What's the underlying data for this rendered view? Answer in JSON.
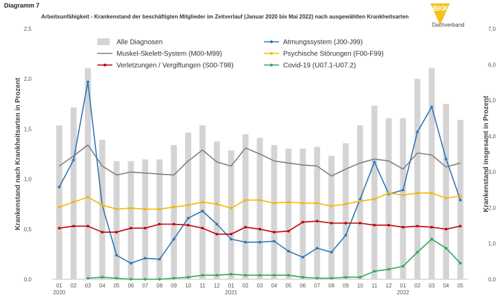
{
  "header": {
    "diagram_label": "Diagramm 7",
    "title": "Arbeitsunfähigkeit - Krankenstand der beschäftigten Mitglieder im Zeitverlauf (Januar 2020 bis Mai 2022) nach ausgewählten Krankheitsarten"
  },
  "logo": {
    "mark_text": "BKK",
    "text": "Dachverband"
  },
  "colors": {
    "bars": "#d4d4d4",
    "muskel": "#7f7f7f",
    "atmung": "#2e75b6",
    "psyche": "#f2b800",
    "verletzung": "#c00000",
    "covid": "#2ea55a"
  },
  "chart_data": {
    "type": "bar+line",
    "title": "Arbeitsunfähigkeit - Krankenstand der beschäftigten Mitglieder im Zeitverlauf (Januar 2020 bis Mai 2022) nach ausgewählten Krankheitsarten",
    "ylabel_left": "Krankenstand nach Krankheitsarten in Prozent",
    "ylabel_right": "Krankenstand insgesamt in Prozent",
    "ylim_left": [
      0,
      2.5
    ],
    "ylim_right": [
      0,
      7.0
    ],
    "yticks_left": [
      "0,0",
      "0,5",
      "1,0",
      "1,5",
      "2,0",
      "2,5"
    ],
    "yticks_right": [
      "0,0",
      "1,0",
      "2,0",
      "3,0",
      "4,0",
      "5,0",
      "6,0",
      "7,0"
    ],
    "categories": [
      "01",
      "02",
      "03",
      "04",
      "05",
      "06",
      "07",
      "08",
      "09",
      "10",
      "11",
      "12",
      "01",
      "02",
      "03",
      "04",
      "05",
      "06",
      "07",
      "08",
      "09",
      "10",
      "11",
      "12",
      "01",
      "02",
      "03",
      "04",
      "05"
    ],
    "year_labels": [
      {
        "index": 0,
        "label": "2020"
      },
      {
        "index": 12,
        "label": "2021"
      },
      {
        "index": 24,
        "label": "2022"
      }
    ],
    "legend_placement": "top",
    "grid": false,
    "bars": {
      "name": "Alle Diagnosen",
      "axis": "right",
      "values": [
        4.3,
        4.8,
        5.9,
        3.9,
        3.3,
        3.3,
        3.35,
        3.35,
        3.75,
        4.1,
        4.3,
        3.85,
        3.6,
        4.05,
        3.95,
        3.75,
        3.65,
        3.65,
        3.7,
        3.45,
        3.8,
        4.3,
        4.85,
        4.5,
        4.5,
        5.6,
        5.9,
        4.9,
        4.45
      ]
    },
    "series": [
      {
        "name": "Muskel-Skelett-System (M00-M99)",
        "key": "muskel",
        "axis": "left",
        "values": [
          1.13,
          1.23,
          1.34,
          1.13,
          1.04,
          1.07,
          1.06,
          1.05,
          1.04,
          1.18,
          1.29,
          1.17,
          1.13,
          1.31,
          1.25,
          1.18,
          1.16,
          1.14,
          1.13,
          1.03,
          1.1,
          1.16,
          1.2,
          1.18,
          1.1,
          1.26,
          1.24,
          1.12,
          1.16
        ]
      },
      {
        "name": "Atmungssystem (J00-J99)",
        "key": "atmung",
        "axis": "left",
        "values": [
          0.92,
          1.19,
          1.97,
          0.74,
          0.24,
          0.16,
          0.21,
          0.2,
          0.4,
          0.61,
          0.68,
          0.55,
          0.4,
          0.37,
          0.37,
          0.38,
          0.28,
          0.22,
          0.31,
          0.27,
          0.44,
          0.8,
          1.17,
          0.85,
          0.89,
          1.47,
          1.72,
          1.2,
          0.79
        ]
      },
      {
        "name": "Psychische Störungen (F00-F99)",
        "key": "psyche",
        "axis": "left",
        "values": [
          0.72,
          0.77,
          0.82,
          0.74,
          0.7,
          0.71,
          0.7,
          0.7,
          0.72,
          0.74,
          0.77,
          0.75,
          0.71,
          0.79,
          0.79,
          0.76,
          0.77,
          0.76,
          0.76,
          0.73,
          0.75,
          0.78,
          0.8,
          0.86,
          0.84,
          0.86,
          0.86,
          0.81,
          0.83
        ]
      },
      {
        "name": "Verletzungen / Vergiftungen (S00-T98)",
        "key": "verletzung",
        "axis": "left",
        "values": [
          0.51,
          0.53,
          0.53,
          0.47,
          0.47,
          0.51,
          0.51,
          0.55,
          0.55,
          0.54,
          0.51,
          0.45,
          0.45,
          0.52,
          0.5,
          0.47,
          0.48,
          0.57,
          0.58,
          0.56,
          0.56,
          0.56,
          0.54,
          0.54,
          0.52,
          0.53,
          0.52,
          0.5,
          0.53
        ]
      },
      {
        "name": "Covid-19 (U07.1-U07.2)",
        "key": "covid",
        "axis": "left",
        "values": [
          null,
          null,
          0.01,
          0.02,
          0.01,
          0.0,
          0.0,
          0.0,
          0.01,
          0.02,
          0.04,
          0.04,
          0.05,
          0.04,
          0.04,
          0.04,
          0.04,
          0.02,
          0.01,
          0.01,
          0.02,
          0.02,
          0.08,
          0.1,
          0.13,
          0.27,
          0.4,
          0.31,
          0.16
        ]
      }
    ],
    "legend": [
      {
        "name": "Alle Diagnosen",
        "key": "bars",
        "kind": "bar"
      },
      {
        "name": "Atmungssystem (J00-J99)",
        "key": "atmung",
        "kind": "line"
      },
      {
        "name": "Muskel-Skelett-System (M00-M99)",
        "key": "muskel",
        "kind": "line"
      },
      {
        "name": "Psychische Störungen (F00-F99)",
        "key": "psyche",
        "kind": "line"
      },
      {
        "name": "Verletzungen / Vergiftungen (S00-T98)",
        "key": "verletzung",
        "kind": "line"
      },
      {
        "name": "Covid-19 (U07.1-U07.2)",
        "key": "covid",
        "kind": "line"
      }
    ]
  }
}
